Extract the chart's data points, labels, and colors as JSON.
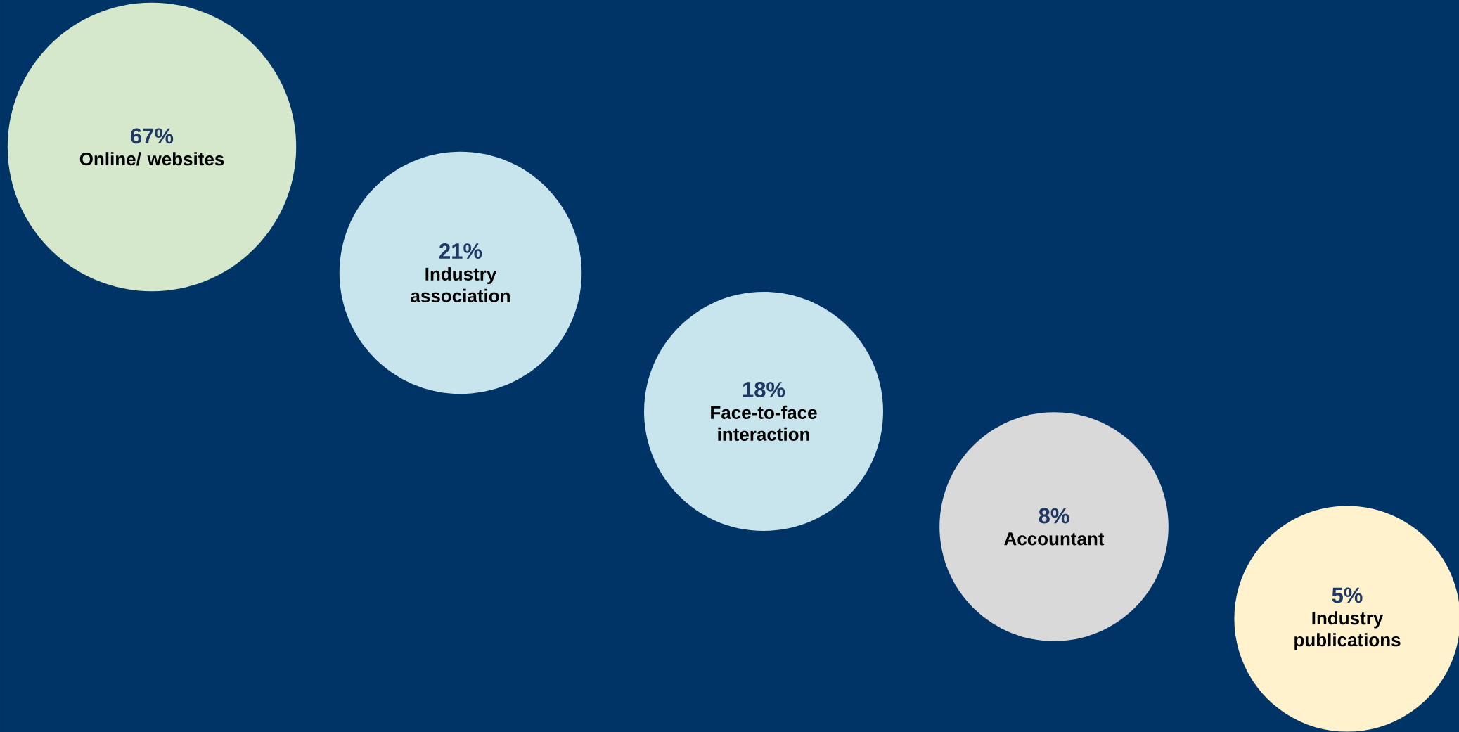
{
  "chart_data": {
    "type": "other",
    "categories": [
      "Online/ websites",
      "Industry association",
      "Face-to-face interaction",
      "Accountant",
      "Industry publications"
    ],
    "values": [
      67,
      21,
      18,
      8,
      5
    ],
    "value_labels": [
      "67%",
      "21%",
      "18%",
      "8%",
      "5%"
    ],
    "colors": [
      "#d5e8cc",
      "#c8e4ec",
      "#c8e4ec",
      "#d9d9d9",
      "#fff2cc"
    ]
  }
}
